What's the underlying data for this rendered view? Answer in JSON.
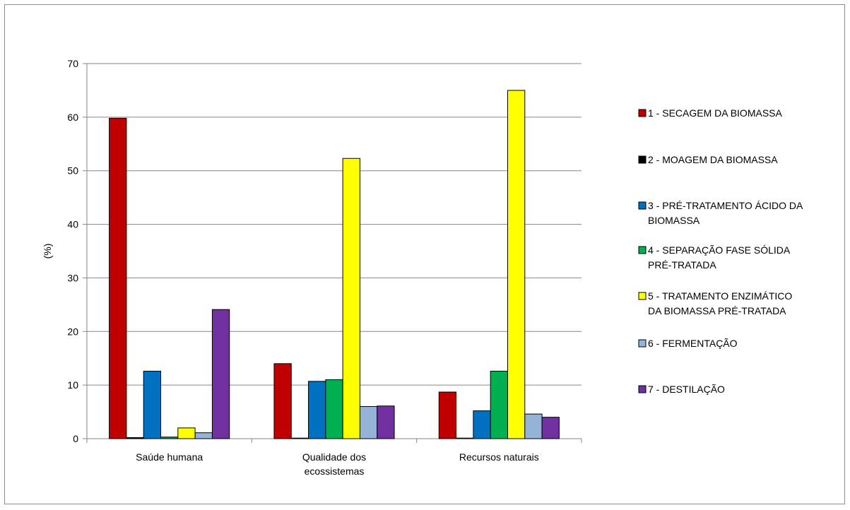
{
  "chart_data": {
    "type": "bar",
    "title": "",
    "xlabel": "",
    "ylabel": "(%)",
    "ylim": [
      0,
      70
    ],
    "yticks": [
      0,
      10,
      20,
      30,
      40,
      50,
      60,
      70
    ],
    "grid": true,
    "legend_position": "right",
    "categories": [
      [
        "Saúde humana"
      ],
      [
        "Qualidade dos",
        "ecossistemas"
      ],
      [
        "Recursos naturais"
      ]
    ],
    "series": [
      {
        "name": [
          "1 - SECAGEM DA BIOMASSA"
        ],
        "color": "#c00000",
        "values": [
          59.8,
          14.0,
          8.7
        ]
      },
      {
        "name": [
          "2 - MOAGEM DA BIOMASSA"
        ],
        "color": "#000000",
        "values": [
          0.2,
          0.05,
          0.05
        ]
      },
      {
        "name": [
          "3 - PRÉ-TRATAMENTO ÁCIDO DA",
          "BIOMASSA"
        ],
        "color": "#0070c0",
        "values": [
          12.6,
          10.7,
          5.2
        ]
      },
      {
        "name": [
          "4 - SEPARAÇÃO FASE SÓLIDA",
          "PRÉ-TRATADA"
        ],
        "color": "#00b050",
        "values": [
          0.3,
          11.0,
          12.6
        ]
      },
      {
        "name": [
          "5 - TRATAMENTO ENZIMÁTICO",
          "DA BIOMASSA PRÉ-TRATADA"
        ],
        "color": "#ffff00",
        "values": [
          2.0,
          52.3,
          65.0
        ]
      },
      {
        "name": [
          "6 - FERMENTAÇÃO"
        ],
        "color": "#95b3d7",
        "values": [
          1.1,
          6.0,
          4.6
        ]
      },
      {
        "name": [
          "7 - DESTILAÇÃO"
        ],
        "color": "#7030a0",
        "values": [
          24.1,
          6.1,
          4.0
        ]
      }
    ]
  }
}
